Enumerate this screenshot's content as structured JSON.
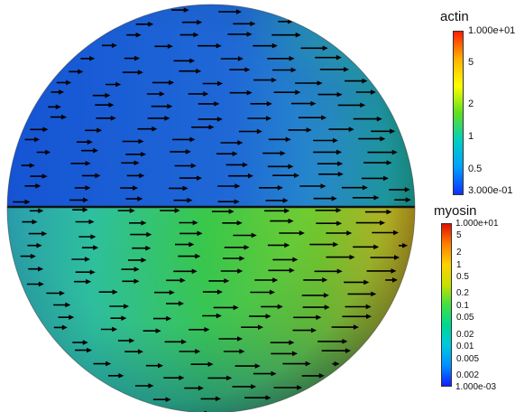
{
  "scene": {
    "colors": {
      "background": "#ffffff",
      "arrow": "#000000",
      "divider": "#111111"
    },
    "upper_hemisphere": {
      "field": "actin",
      "dominant_color": "#1f60d8",
      "edge_color": "#f07a10"
    },
    "lower_hemisphere": {
      "field": "myosin",
      "dominant_color": "#33c440",
      "edge_color": "#c93a0a"
    },
    "glyphs": "velocity-arrows"
  },
  "legends": {
    "actin": {
      "title": "actin",
      "scale": "log",
      "max_label": "1.000e+01",
      "min_label": "3.000e-01",
      "ticks": [
        "5",
        "2",
        "1",
        "0.5"
      ],
      "colormap": [
        "#ff1e00",
        "#ffb000",
        "#ffff00",
        "#5fe020",
        "#00d0c0",
        "#00a0ff",
        "#1030ff"
      ]
    },
    "myosin": {
      "title": "myosin",
      "scale": "log",
      "max_label": "1.000e+01",
      "min_label": "1.000e-03",
      "ticks": [
        "5",
        "2",
        "1",
        "0.5",
        "0.2",
        "0.1",
        "0.05",
        "0.02",
        "0.01",
        "0.005",
        "0.002"
      ],
      "colormap": [
        "#e01000",
        "#ff8000",
        "#ffd000",
        "#c8e000",
        "#40e040",
        "#00d890",
        "#00c8e0",
        "#0090ff",
        "#1020ff"
      ]
    }
  }
}
